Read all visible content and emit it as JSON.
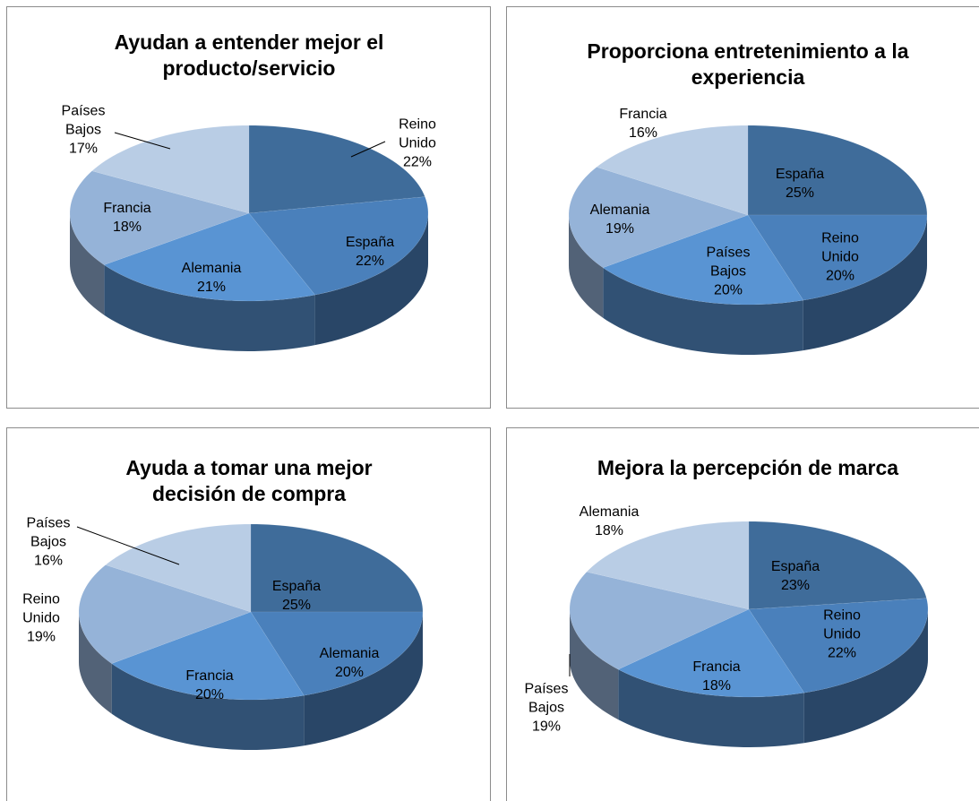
{
  "chart_data": [
    {
      "type": "pie",
      "title": "Ayudan a entender mejor el producto/servicio",
      "categories": [
        "Reino Unido",
        "España",
        "Alemania",
        "Francia",
        "Países Bajos"
      ],
      "values": [
        22,
        22,
        21,
        18,
        17
      ],
      "value_labels": [
        "22%",
        "22%",
        "21%",
        "18%",
        "17%"
      ],
      "colors": [
        "#3f6c9a",
        "#4a80bb",
        "#5994d3",
        "#95b3d8",
        "#b9cde5"
      ]
    },
    {
      "type": "pie",
      "title": "Proporciona entretenimiento a la experiencia",
      "categories": [
        "España",
        "Reino Unido",
        "Países Bajos",
        "Alemania",
        "Francia"
      ],
      "values": [
        25,
        20,
        20,
        19,
        16
      ],
      "value_labels": [
        "25%",
        "20%",
        "20%",
        "19%",
        "16%"
      ],
      "colors": [
        "#3f6c9a",
        "#4a80bb",
        "#5994d3",
        "#95b3d8",
        "#b9cde5"
      ]
    },
    {
      "type": "pie",
      "title": "Ayuda a tomar una mejor decisión de compra",
      "categories": [
        "España",
        "Alemania",
        "Francia",
        "Reino Unido",
        "Países Bajos"
      ],
      "values": [
        25,
        20,
        20,
        19,
        16
      ],
      "value_labels": [
        "25%",
        "20%",
        "20%",
        "19%",
        "16%"
      ],
      "colors": [
        "#3f6c9a",
        "#4a80bb",
        "#5994d3",
        "#95b3d8",
        "#b9cde5"
      ]
    },
    {
      "type": "pie",
      "title": "Mejora la percepción de marca",
      "categories": [
        "España",
        "Reino Unido",
        "Francia",
        "Países Bajos",
        "Alemania"
      ],
      "values": [
        23,
        22,
        18,
        19,
        18
      ],
      "value_labels": [
        "23%",
        "22%",
        "18%",
        "19%",
        "18%"
      ],
      "colors": [
        "#3f6c9a",
        "#4a80bb",
        "#5994d3",
        "#95b3d8",
        "#b9cde5"
      ]
    }
  ]
}
